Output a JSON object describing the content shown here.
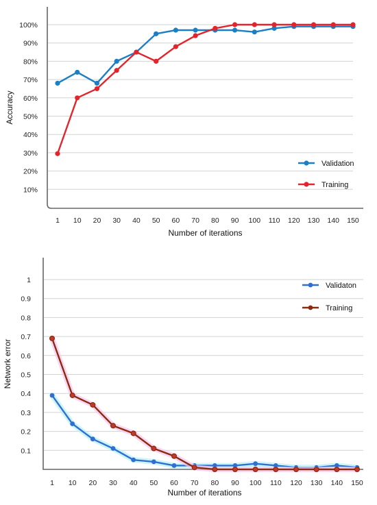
{
  "chart_data": [
    {
      "type": "line",
      "title": "",
      "xlabel": "Number of iterations",
      "ylabel": "Accuracy",
      "categories": [
        "1",
        "10",
        "20",
        "30",
        "40",
        "50",
        "60",
        "70",
        "80",
        "90",
        "100",
        "110",
        "120",
        "130",
        "140",
        "150"
      ],
      "yticks": [
        "10%",
        "20%",
        "30%",
        "40%",
        "50%",
        "60%",
        "70%",
        "80%",
        "90%",
        "100%"
      ],
      "ylim": [
        0,
        104
      ],
      "grid": true,
      "legend": "bottom-right",
      "series": [
        {
          "name": "Validation",
          "color": "#1a7fc4",
          "values": [
            68,
            74,
            68,
            80,
            85,
            95,
            97,
            97,
            97,
            97,
            96,
            98,
            99,
            99,
            99,
            99
          ]
        },
        {
          "name": "Training",
          "color": "#e3242b",
          "values": [
            29.5,
            60,
            65,
            75,
            85,
            80,
            88,
            94,
            98,
            100,
            100,
            100,
            100,
            100,
            100,
            100
          ]
        }
      ]
    },
    {
      "type": "line",
      "title": "",
      "xlabel": "Number of iterations",
      "ylabel": "Network error",
      "categories": [
        "1",
        "10",
        "20",
        "30",
        "40",
        "50",
        "60",
        "70",
        "80",
        "90",
        "100",
        "110",
        "120",
        "130",
        "140",
        "150"
      ],
      "yticks": [
        "0.1",
        "0.2",
        "0.3",
        "0.4",
        "0.5",
        "0.6",
        "0.7",
        "0.8",
        "0.9",
        "1"
      ],
      "ylim": [
        0,
        1.1
      ],
      "grid": true,
      "legend": "top-right",
      "series": [
        {
          "name": "Validaton",
          "color": "#2f6fd0",
          "values": [
            0.39,
            0.24,
            0.16,
            0.11,
            0.05,
            0.04,
            0.02,
            0.02,
            0.02,
            0.02,
            0.03,
            0.02,
            0.01,
            0.01,
            0.02,
            0.01
          ]
        },
        {
          "name": "Training",
          "color": "#8b2a0e",
          "values": [
            0.69,
            0.39,
            0.34,
            0.23,
            0.19,
            0.11,
            0.07,
            0.01,
            0.0,
            0.0,
            0.0,
            0.0,
            0.0,
            0.0,
            0.0,
            0.0
          ]
        }
      ]
    }
  ]
}
